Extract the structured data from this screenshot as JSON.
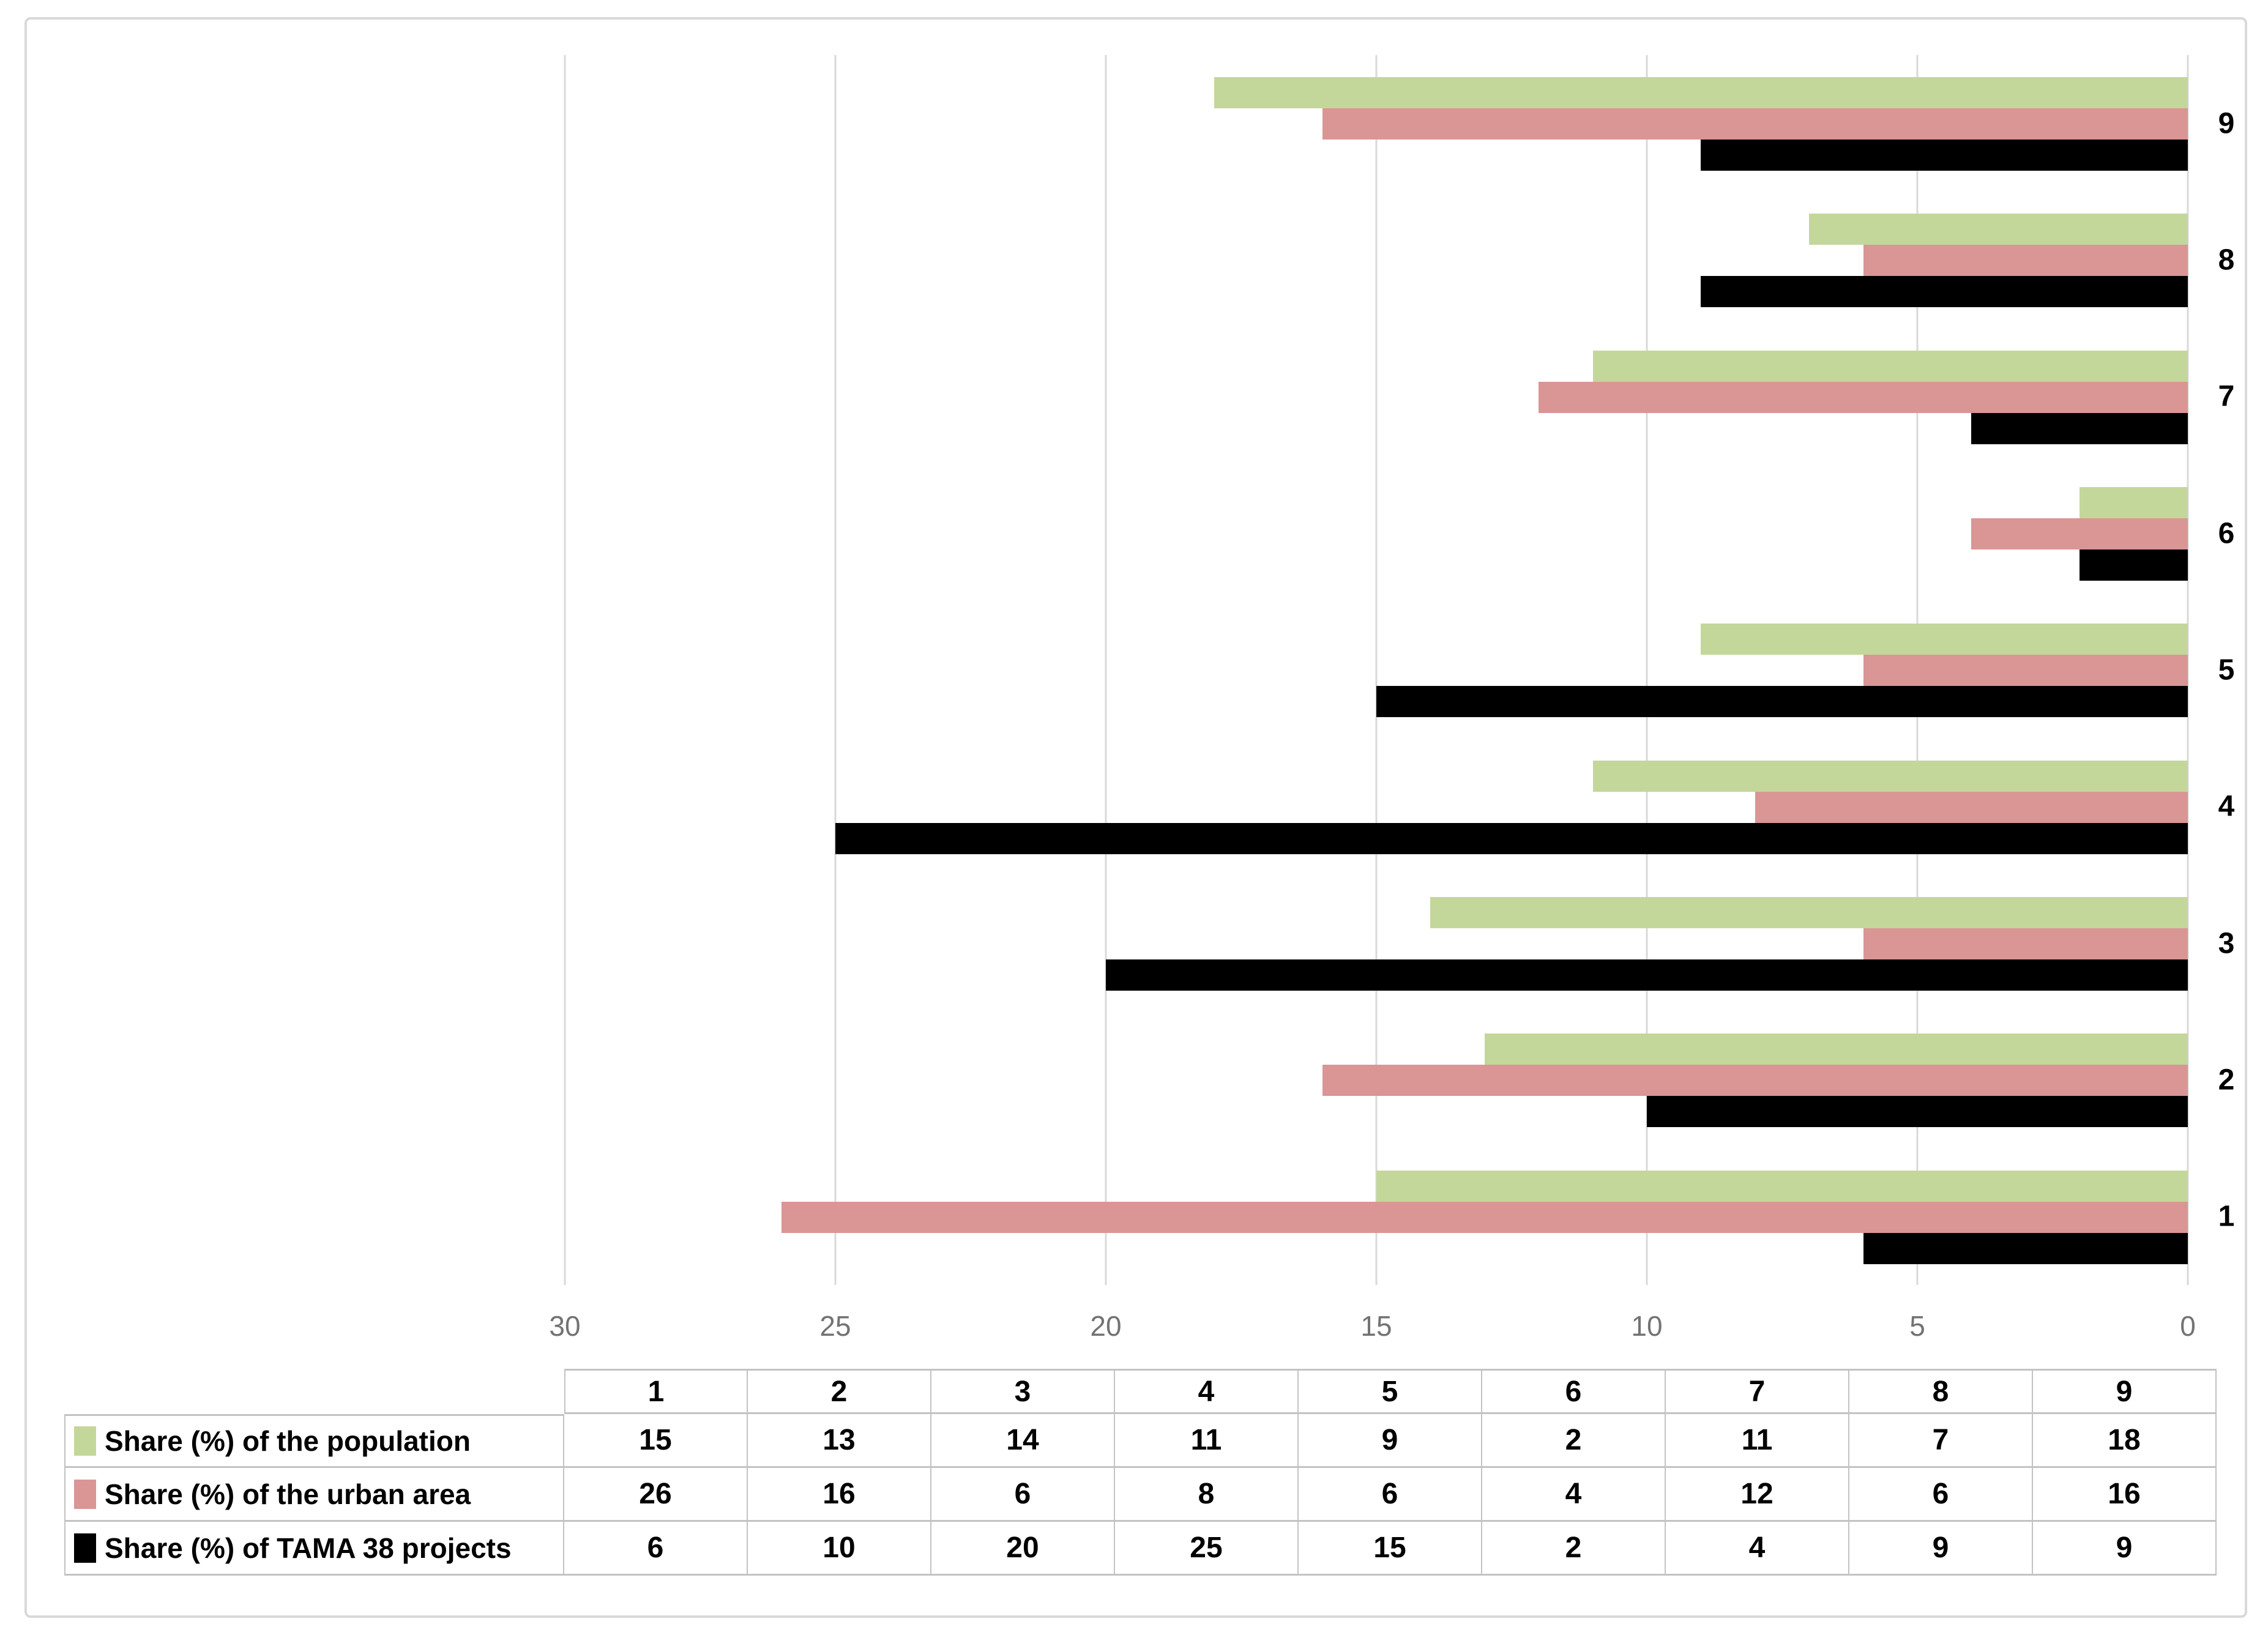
{
  "chart_data": {
    "type": "bar",
    "orientation": "horizontal",
    "title": "",
    "categories": [
      "1",
      "2",
      "3",
      "4",
      "5",
      "6",
      "7",
      "8",
      "9"
    ],
    "series": [
      {
        "name": "Share (%) of the population",
        "color": "#c4d79b",
        "values": [
          15,
          13,
          14,
          11,
          9,
          2,
          11,
          7,
          18
        ]
      },
      {
        "name": "Share (%) of the urban area",
        "color": "#d99694",
        "values": [
          26,
          16,
          6,
          8,
          6,
          4,
          12,
          6,
          16
        ]
      },
      {
        "name": "Share (%) of TAMA 38 projects",
        "color": "#000000",
        "values": [
          6,
          10,
          20,
          25,
          15,
          2,
          4,
          9,
          9
        ]
      }
    ],
    "value_axis": {
      "min": 0,
      "max": 30,
      "tick_interval": 5,
      "ticks": [
        30,
        25,
        20,
        15,
        10,
        5,
        0
      ],
      "reversed": true
    },
    "category_axis": {
      "side": "right",
      "labels_top_to_bottom": [
        "9",
        "8",
        "7",
        "6",
        "5",
        "4",
        "3",
        "2",
        "1"
      ]
    },
    "gridlines": true,
    "legend_position": "data-table-left",
    "data_table_shown": true
  },
  "colors": {
    "gridline": "#d9d9d9",
    "frame_border": "#d9d9d9",
    "table_border": "#c3c3c3",
    "tick_text": "#737373",
    "category_text": "#000000",
    "background": "#ffffff"
  }
}
